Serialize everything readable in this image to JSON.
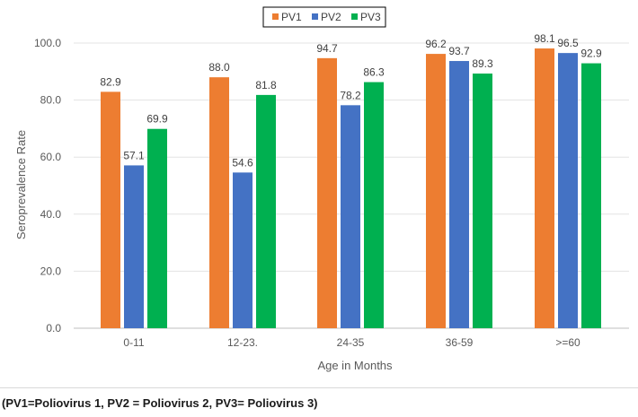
{
  "chart_data": {
    "type": "bar",
    "title": "",
    "xlabel": "Age in Months",
    "ylabel": "Seroprevalence Rate",
    "ylim": [
      0,
      100
    ],
    "yticks": [
      "0.0",
      "20.0",
      "40.0",
      "60.0",
      "80.0",
      "100.0"
    ],
    "ytick_values": [
      0,
      20,
      40,
      60,
      80,
      100
    ],
    "categories": [
      "0-11",
      "12-23.",
      "24-35",
      "36-59",
      ">=60"
    ],
    "series": [
      {
        "name": "PV1",
        "color": "#ED7D31",
        "values": [
          82.9,
          88.0,
          94.7,
          96.2,
          98.1
        ],
        "labels": [
          "82.9",
          "88.0",
          "94.7",
          "96.2",
          "98.1"
        ]
      },
      {
        "name": "PV2",
        "color": "#4472C4",
        "values": [
          57.1,
          54.6,
          78.2,
          93.7,
          96.5
        ],
        "labels": [
          "57.1",
          "54.6",
          "78.2",
          "93.7",
          "96.5"
        ]
      },
      {
        "name": "PV3",
        "color": "#00B050",
        "values": [
          69.9,
          81.8,
          86.3,
          89.3,
          92.9
        ],
        "labels": [
          "69.9",
          "81.8",
          "86.3",
          "89.3",
          "92.9"
        ]
      }
    ],
    "grid": true,
    "legend": "top-center"
  },
  "caption": "(PV1=Poliovirus 1, PV2 = Poliovirus 2, PV3= Poliovirus 3)"
}
